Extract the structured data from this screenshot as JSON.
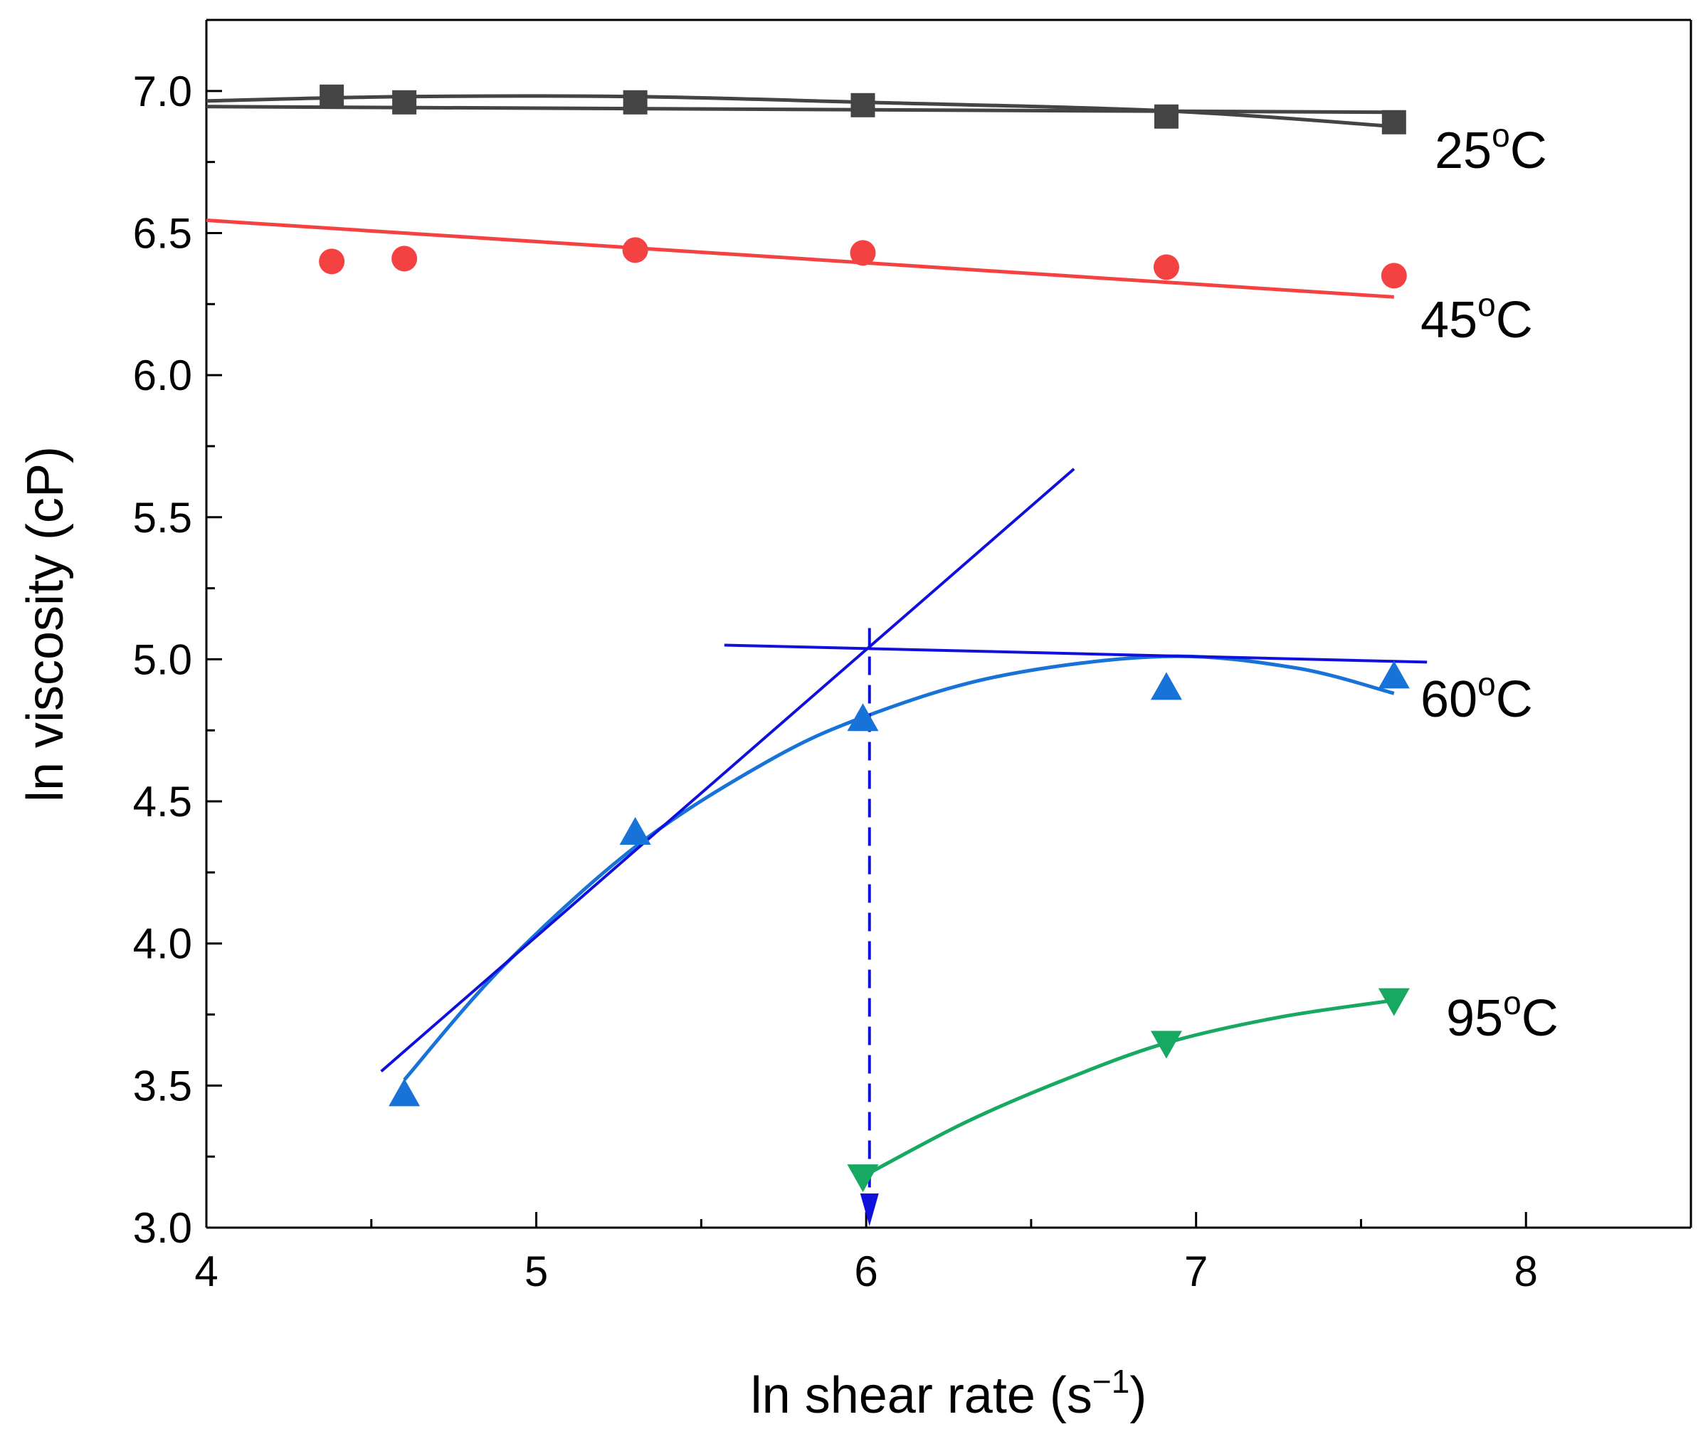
{
  "chart_data": {
    "type": "scatter",
    "title": "",
    "xlabel": "ln shear rate (s",
    "xlabel_sup": "−1",
    "xlabel_close": ")",
    "ylabel": "ln viscosity (cP)",
    "xlim": [
      4,
      8.5
    ],
    "ylim": [
      3.0,
      7.25
    ],
    "xticks": [
      4,
      5,
      6,
      7,
      8
    ],
    "xtick_labels": [
      "4",
      "5",
      "6",
      "7",
      "8"
    ],
    "yticks": [
      3.0,
      3.5,
      4.0,
      4.5,
      5.0,
      5.5,
      6.0,
      6.5,
      7.0
    ],
    "ytick_labels": [
      "3.0",
      "3.5",
      "4.0",
      "4.5",
      "5.0",
      "5.5",
      "6.0",
      "6.5",
      "7.0"
    ],
    "grid": false,
    "series": [
      {
        "name": "25",
        "label_main": "25",
        "label_sup": "o",
        "label_end": "C",
        "color": "#444444",
        "marker": "square",
        "x": [
          4.38,
          4.6,
          5.3,
          5.99,
          6.91,
          7.6
        ],
        "y": [
          6.98,
          6.96,
          6.96,
          6.95,
          6.91,
          6.89
        ],
        "fit": [
          [
            4.0,
            6.965
          ],
          [
            4.6,
            6.98
          ],
          [
            5.3,
            6.98
          ],
          [
            6.0,
            6.96
          ],
          [
            6.91,
            6.93
          ],
          [
            7.6,
            6.875
          ]
        ],
        "fit2": [
          [
            4.0,
            6.945
          ],
          [
            7.6,
            6.925
          ]
        ]
      },
      {
        "name": "45",
        "label_main": "45",
        "label_sup": "o",
        "label_end": "C",
        "color": "#f44242",
        "marker": "circle",
        "x": [
          4.38,
          4.6,
          5.3,
          5.99,
          6.91,
          7.6
        ],
        "y": [
          6.4,
          6.41,
          6.44,
          6.43,
          6.38,
          6.35
        ],
        "fit": [
          [
            4.0,
            6.545
          ],
          [
            7.6,
            6.275
          ]
        ]
      },
      {
        "name": "60",
        "label_main": "60",
        "label_sup": "o",
        "label_end": "C",
        "color": "#1873d8",
        "marker": "triangle-up",
        "x": [
          4.6,
          5.3,
          5.99,
          6.91,
          7.6
        ],
        "y": [
          3.47,
          4.39,
          4.79,
          4.9,
          4.94
        ],
        "fit": [
          [
            4.6,
            3.52
          ],
          [
            4.9,
            3.92
          ],
          [
            5.3,
            4.34
          ],
          [
            5.7,
            4.64
          ],
          [
            6.0,
            4.8
          ],
          [
            6.4,
            4.94
          ],
          [
            6.9,
            5.01
          ],
          [
            7.3,
            4.97
          ],
          [
            7.6,
            4.88
          ]
        ]
      },
      {
        "name": "95",
        "label_main": "95",
        "label_sup": "o",
        "label_end": "C",
        "color": "#17a862",
        "marker": "triangle-down",
        "x": [
          5.99,
          6.91,
          7.6
        ],
        "y": [
          3.18,
          3.65,
          3.8
        ],
        "fit": [
          [
            5.99,
            3.18
          ],
          [
            6.3,
            3.37
          ],
          [
            6.6,
            3.52
          ],
          [
            6.91,
            3.65
          ],
          [
            7.25,
            3.74
          ],
          [
            7.6,
            3.8
          ]
        ]
      }
    ],
    "annotations": [
      {
        "name": "tangent-steep-line",
        "color": "#1010dd",
        "dashed": false,
        "points": [
          [
            4.53,
            3.55
          ],
          [
            6.63,
            5.67
          ]
        ]
      },
      {
        "name": "tangent-flat-line",
        "color": "#1010dd",
        "dashed": false,
        "points": [
          [
            5.57,
            5.05
          ],
          [
            7.7,
            4.99
          ]
        ]
      },
      {
        "name": "critical-shear-dashed-line",
        "color": "#1010dd",
        "dashed": true,
        "arrow": true,
        "points": [
          [
            6.01,
            5.11
          ],
          [
            6.01,
            3.0
          ]
        ]
      }
    ]
  }
}
